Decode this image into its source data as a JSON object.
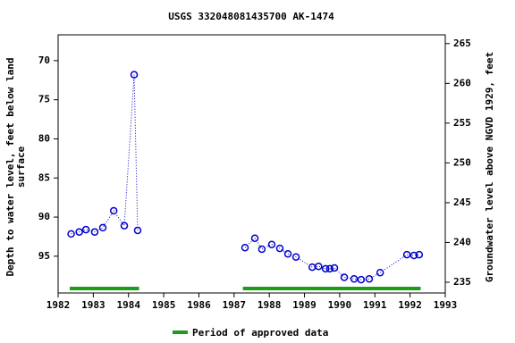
{
  "chart_data": {
    "type": "line",
    "title": "USGS 332048081435700 AK-1474",
    "y_label_lines": [
      "Depth to water level, feet below land",
      "surface"
    ],
    "y2_label": "Groundwater level above NGVD 1929, feet",
    "x": [
      1982.37,
      1982.6,
      1982.79,
      1983.04,
      1983.27,
      1983.58,
      1983.88,
      1984.16,
      1984.26,
      null,
      1987.31,
      1987.59,
      1987.79,
      1988.07,
      1988.3,
      1988.53,
      1988.76,
      1989.22,
      1989.4,
      1989.6,
      1989.72,
      1989.85,
      1990.13,
      1990.41,
      1990.61,
      1990.84,
      1991.15,
      1991.91,
      1992.11,
      1992.26
    ],
    "series": [
      {
        "name": "Depth to water level",
        "color": "#0000cc",
        "values": [
          92.15,
          91.9,
          91.6,
          91.9,
          91.35,
          89.2,
          91.1,
          71.8,
          91.7,
          null,
          93.9,
          92.7,
          94.1,
          93.5,
          94.0,
          94.7,
          95.1,
          96.4,
          96.3,
          96.6,
          96.6,
          96.5,
          97.7,
          97.9,
          98.0,
          97.9,
          97.1,
          94.8,
          94.9,
          94.8
        ]
      }
    ],
    "xlim": [
      1982,
      1993
    ],
    "xticks": [
      1982,
      1983,
      1984,
      1985,
      1986,
      1987,
      1988,
      1989,
      1990,
      1991,
      1992,
      1993
    ],
    "ylim": [
      66.7,
      99.7
    ],
    "y_inverted": true,
    "yticks": [
      70,
      75,
      80,
      85,
      90,
      95
    ],
    "y2lim": [
      233.65,
      266.1
    ],
    "y2ticks": [
      235,
      240,
      245,
      250,
      255,
      260,
      265
    ],
    "approved_periods": [
      [
        1982.33,
        1984.3
      ],
      [
        1987.25,
        1992.3
      ]
    ],
    "approved_color": "#1a9e1a",
    "legend": "Period of approved data"
  }
}
